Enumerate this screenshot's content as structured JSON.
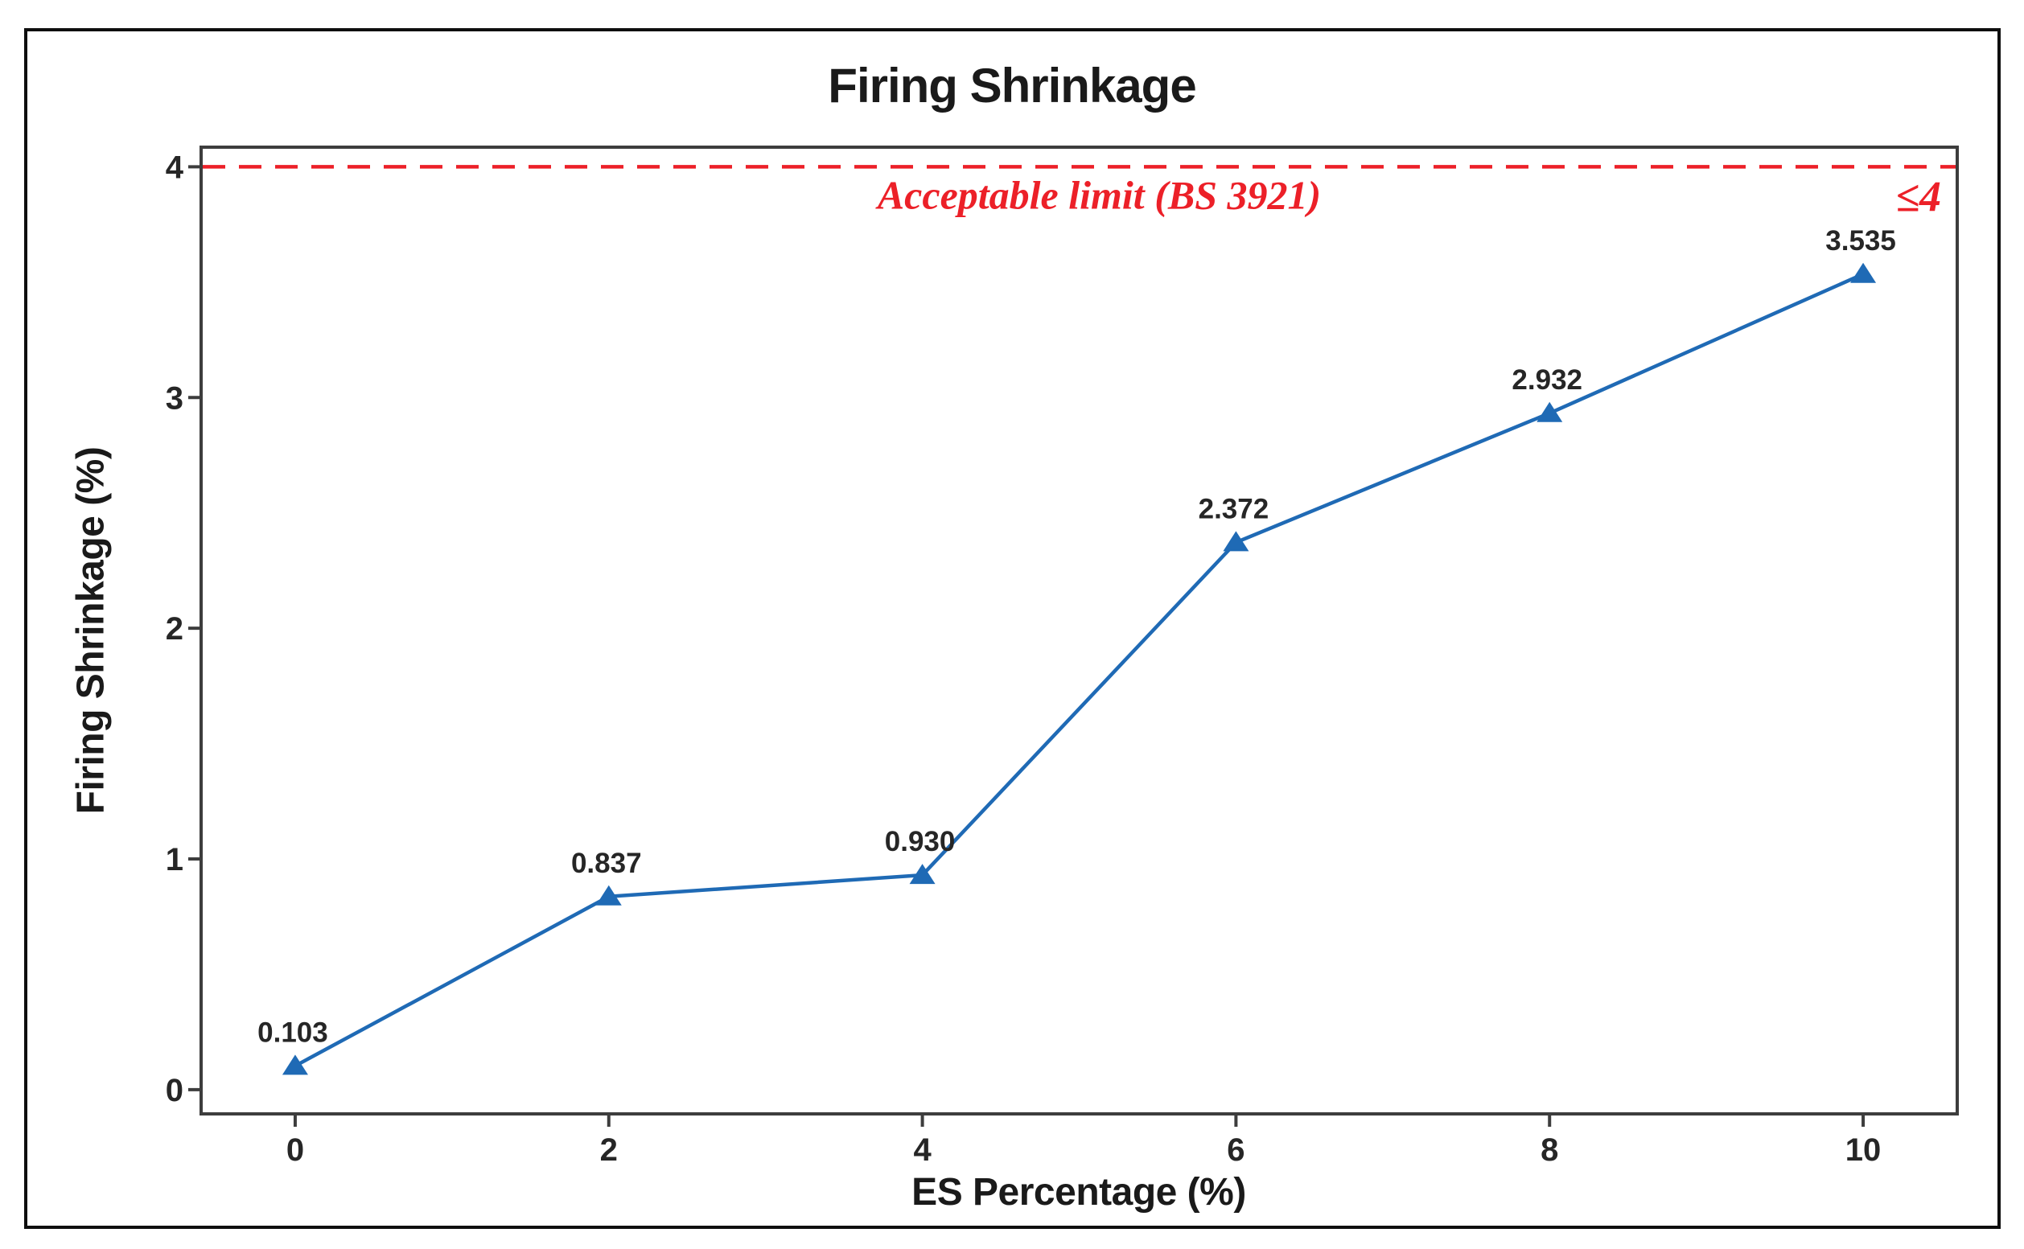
{
  "figure": {
    "background": "#ffffff",
    "border_color": "#0e0e0e"
  },
  "chart_data": {
    "type": "line",
    "title": "Firing Shrinkage",
    "xlabel": "ES Percentage (%)",
    "ylabel": "Firing Shrinkage (%)",
    "x": [
      0,
      2,
      4,
      6,
      8,
      10
    ],
    "values": [
      0.103,
      0.837,
      0.93,
      2.372,
      2.932,
      3.535
    ],
    "point_labels": [
      "0.103",
      "0.837",
      "0.930",
      "2.372",
      "2.932",
      "3.535"
    ],
    "x_ticks": [
      "0",
      "2",
      "4",
      "6",
      "8",
      "10"
    ],
    "x_tick_values": [
      0,
      2,
      4,
      6,
      8,
      10
    ],
    "y_ticks": [
      "0",
      "1",
      "2",
      "3",
      "4"
    ],
    "y_tick_values": [
      0,
      1,
      2,
      3,
      4
    ],
    "xlim": [
      -0.6,
      10.6
    ],
    "ylim": [
      -0.105,
      4.085
    ],
    "grid": false,
    "legend": false,
    "marker": "triangle-up",
    "series_color": "#1f6ab5",
    "axis_color": "#3d3d3d",
    "tick_text_color": "#262626",
    "label_text_color": "#262626",
    "reference_line": {
      "y": 4,
      "style": "dashed",
      "color": "#ec2028",
      "label": "Acceptable limit (BS 3921)",
      "value_label": "≤4"
    }
  }
}
